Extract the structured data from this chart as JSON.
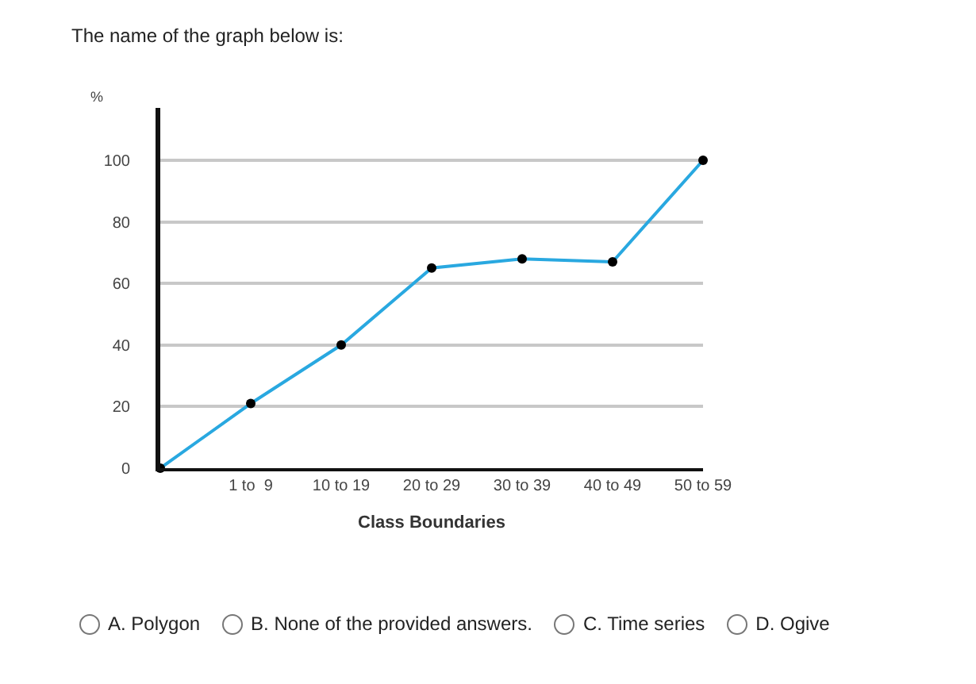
{
  "chart_data": {
    "type": "line",
    "title": "The name of the graph below is:",
    "xlabel": "Class Boundaries",
    "ylabel": "%",
    "categories": [
      null,
      "1 to  9",
      "10 to 19",
      "20 to 29",
      "30 to 39",
      "40 to 49",
      "50 to 59"
    ],
    "series": [
      {
        "color": "#29a8e0",
        "values": [
          0,
          21,
          40,
          65,
          68,
          67,
          100
        ]
      }
    ],
    "ylim": [
      0,
      117
    ],
    "yticks": [
      0,
      20,
      40,
      60,
      80,
      100
    ],
    "grid": "y",
    "marker": "circle",
    "line_style": "solid",
    "annotations": [
      "A. Polygon",
      "B. None of the provided answers.",
      "C. Time series",
      "D. Ogive"
    ]
  }
}
